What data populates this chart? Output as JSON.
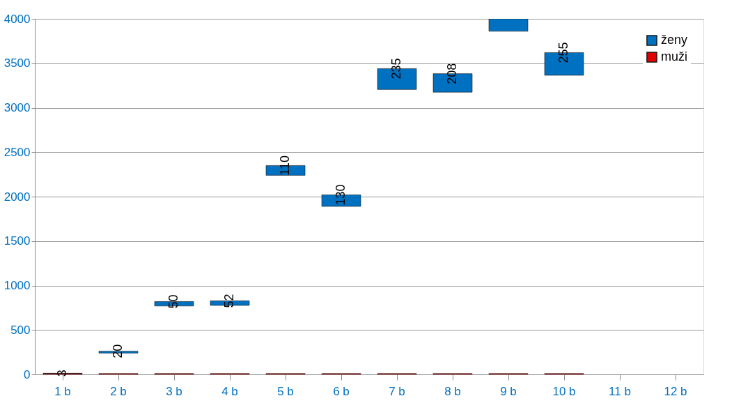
{
  "chart_data": {
    "type": "bar",
    "categories": [
      "1 b",
      "2 b",
      "3 b",
      "4 b",
      "5 b",
      "6 b",
      "7 b",
      "8 b",
      "9 b",
      "10 b",
      "11 b",
      "12 b"
    ],
    "series": [
      {
        "name": "ženy",
        "color": "#0070c0",
        "values": [
          3,
          20,
          50,
          52,
          110,
          130,
          235,
          208,
          140,
          255,
          null,
          null
        ],
        "base": [
          10,
          240,
          770,
          776,
          2240,
          1890,
          3205,
          3175,
          3860,
          3365,
          null,
          null
        ],
        "value_labels": [
          "3",
          "20",
          "50",
          "52",
          "110",
          "130",
          "235",
          "208",
          null,
          "255",
          null,
          null
        ]
      },
      {
        "name": "muži",
        "color": "#e00000",
        "values": [
          10,
          10,
          10,
          10,
          10,
          10,
          10,
          10,
          10,
          10,
          null,
          null
        ]
      }
    ],
    "ylim": [
      0,
      4000
    ],
    "yticks": [
      0,
      500,
      1000,
      1500,
      2000,
      2500,
      3000,
      3500,
      4000
    ],
    "grid": "y",
    "legend": "top right"
  }
}
